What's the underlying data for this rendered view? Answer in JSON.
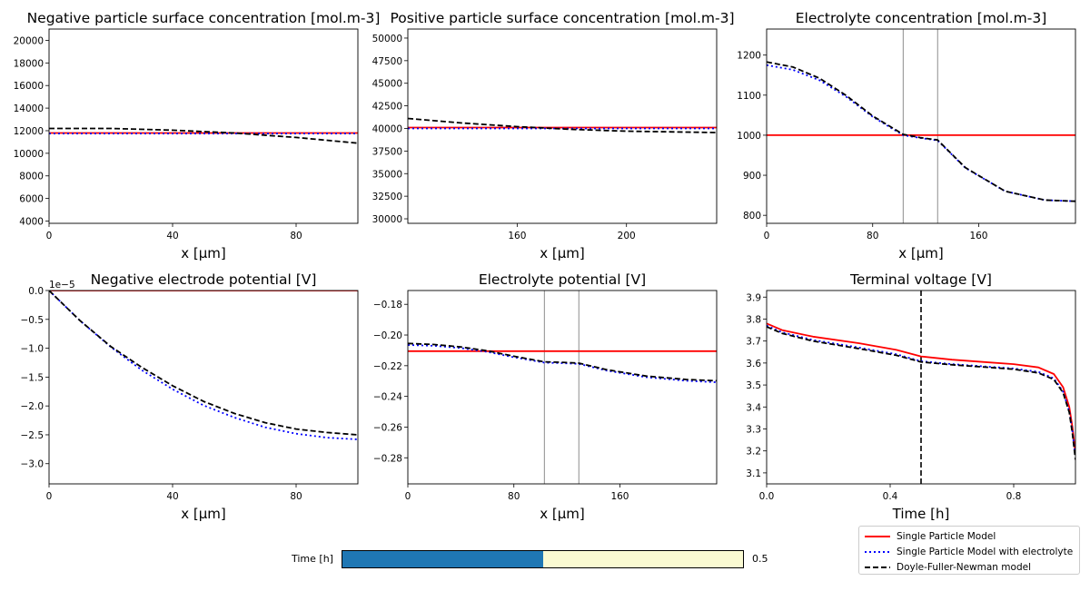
{
  "figure": {
    "legend": [
      {
        "label": "Single Particle Model",
        "color": "#ff0000",
        "style": "solid"
      },
      {
        "label": "Single Particle Model with electrolyte",
        "color": "#0000ff",
        "style": "dotted"
      },
      {
        "label": "Doyle-Fuller-Newman model",
        "color": "#000000",
        "style": "dashed"
      }
    ],
    "slider": {
      "label": "Time [h]",
      "value": 0.5,
      "value_text": "0.5",
      "min": 0,
      "max": 1,
      "fill_color": "#1f77b4",
      "track_color": "#fafad2"
    }
  },
  "chart_data": [
    {
      "type": "line",
      "title": "Negative particle surface concentration [mol.m-3]",
      "xlabel": "x [μm]",
      "ylabel": "",
      "xlim": [
        0,
        100
      ],
      "ylim": [
        3800,
        21000
      ],
      "xticks": [
        "0",
        "40",
        "80"
      ],
      "xtick_values": [
        0,
        40,
        80
      ],
      "yticks": [
        "4000",
        "6000",
        "8000",
        "10000",
        "12000",
        "14000",
        "16000",
        "18000",
        "20000"
      ],
      "ytick_values": [
        4000,
        6000,
        8000,
        10000,
        12000,
        14000,
        16000,
        18000,
        20000
      ],
      "series": [
        {
          "color": "#ff0000",
          "style": "solid",
          "x": [
            0,
            100
          ],
          "y": [
            11800,
            11800
          ]
        },
        {
          "color": "#0000ff",
          "style": "dotted",
          "x": [
            0,
            100
          ],
          "y": [
            11750,
            11750
          ]
        },
        {
          "color": "#000000",
          "style": "dashed",
          "x": [
            0,
            20,
            40,
            60,
            80,
            100
          ],
          "y": [
            12200,
            12200,
            12050,
            11800,
            11400,
            10900
          ]
        }
      ]
    },
    {
      "type": "line",
      "title": "Positive particle surface concentration [mol.m-3]",
      "xlabel": "x [μm]",
      "ylabel": "",
      "xlim": [
        120,
        233
      ],
      "ylim": [
        29500,
        51000
      ],
      "xticks": [
        "160",
        "200"
      ],
      "xtick_values": [
        160,
        200
      ],
      "yticks": [
        "30000",
        "32500",
        "35000",
        "37500",
        "40000",
        "42500",
        "45000",
        "47500",
        "50000"
      ],
      "ytick_values": [
        30000,
        32500,
        35000,
        37500,
        40000,
        42500,
        45000,
        47500,
        50000
      ],
      "series": [
        {
          "color": "#ff0000",
          "style": "solid",
          "x": [
            120,
            233
          ],
          "y": [
            40100,
            40100
          ]
        },
        {
          "color": "#0000ff",
          "style": "dotted",
          "x": [
            120,
            233
          ],
          "y": [
            40000,
            40000
          ]
        },
        {
          "color": "#000000",
          "style": "dashed",
          "x": [
            120,
            140,
            160,
            180,
            200,
            233
          ],
          "y": [
            41100,
            40600,
            40200,
            39900,
            39700,
            39550
          ]
        }
      ]
    },
    {
      "type": "line",
      "title": "Electrolyte concentration [mol.m-3]",
      "xlabel": "x [μm]",
      "ylabel": "",
      "xlim": [
        0,
        233
      ],
      "ylim": [
        780,
        1265
      ],
      "xticks": [
        "0",
        "80",
        "160"
      ],
      "xtick_values": [
        0,
        80,
        160
      ],
      "yticks": [
        "800",
        "900",
        "1000",
        "1100",
        "1200"
      ],
      "ytick_values": [
        800,
        900,
        1000,
        1100,
        1200
      ],
      "vlines": [
        {
          "x": 103,
          "color": "#808080",
          "style": "solid"
        },
        {
          "x": 129,
          "color": "#808080",
          "style": "solid"
        }
      ],
      "series": [
        {
          "color": "#ff0000",
          "style": "solid",
          "x": [
            0,
            233
          ],
          "y": [
            1000,
            1000
          ]
        },
        {
          "color": "#0000ff",
          "style": "dotted",
          "x": [
            0,
            20,
            40,
            60,
            80,
            103,
            116,
            129,
            150,
            180,
            210,
            233
          ],
          "y": [
            1175,
            1163,
            1137,
            1096,
            1046,
            1000,
            993,
            987,
            918,
            860,
            838,
            835
          ]
        },
        {
          "color": "#000000",
          "style": "dashed",
          "x": [
            0,
            20,
            40,
            60,
            80,
            103,
            116,
            129,
            150,
            180,
            210,
            233
          ],
          "y": [
            1183,
            1170,
            1142,
            1099,
            1048,
            1002,
            994,
            988,
            919,
            860,
            838,
            835
          ]
        }
      ]
    },
    {
      "type": "line",
      "title": "Negative electrode potential [V]",
      "xlabel": "x [μm]",
      "ylabel": "",
      "scale_label": "1e−5",
      "xlim": [
        0,
        100
      ],
      "ylim": [
        -3.35,
        0
      ],
      "xticks": [
        "0",
        "40",
        "80"
      ],
      "xtick_values": [
        0,
        40,
        80
      ],
      "yticks": [
        "0.0",
        "−0.5",
        "−1.0",
        "−1.5",
        "−2.0",
        "−2.5",
        "−3.0"
      ],
      "ytick_values": [
        0,
        -0.5,
        -1.0,
        -1.5,
        -2.0,
        -2.5,
        -3.0
      ],
      "series": [
        {
          "color": "#ff0000",
          "style": "solid",
          "x": [
            0,
            100
          ],
          "y": [
            0,
            0
          ]
        },
        {
          "color": "#0000ff",
          "style": "dotted",
          "x": [
            0,
            10,
            20,
            30,
            40,
            50,
            60,
            70,
            80,
            90,
            100
          ],
          "y": [
            0,
            -0.52,
            -0.98,
            -1.38,
            -1.71,
            -1.99,
            -2.2,
            -2.37,
            -2.48,
            -2.55,
            -2.58
          ]
        },
        {
          "color": "#000000",
          "style": "dashed",
          "x": [
            0,
            10,
            20,
            30,
            40,
            50,
            60,
            70,
            80,
            90,
            100
          ],
          "y": [
            0,
            -0.52,
            -0.97,
            -1.33,
            -1.65,
            -1.92,
            -2.13,
            -2.29,
            -2.4,
            -2.46,
            -2.5
          ]
        }
      ]
    },
    {
      "type": "line",
      "title": "Electrolyte potential [V]",
      "xlabel": "x [μm]",
      "ylabel": "",
      "xlim": [
        0,
        233
      ],
      "ylim": [
        -0.297,
        -0.171
      ],
      "xticks": [
        "0",
        "80",
        "160"
      ],
      "xtick_values": [
        0,
        80,
        160
      ],
      "yticks": [
        "−0.18",
        "−0.20",
        "−0.22",
        "−0.24",
        "−0.26",
        "−0.28"
      ],
      "ytick_values": [
        -0.18,
        -0.2,
        -0.22,
        -0.24,
        -0.26,
        -0.28
      ],
      "vlines": [
        {
          "x": 103,
          "color": "#808080",
          "style": "solid"
        },
        {
          "x": 129,
          "color": "#808080",
          "style": "solid"
        }
      ],
      "series": [
        {
          "color": "#ff0000",
          "style": "solid",
          "x": [
            0,
            233
          ],
          "y": [
            -0.2105,
            -0.2105
          ]
        },
        {
          "color": "#0000ff",
          "style": "dotted",
          "x": [
            0,
            20,
            40,
            60,
            80,
            103,
            116,
            129,
            150,
            180,
            210,
            233
          ],
          "y": [
            -0.2065,
            -0.207,
            -0.2085,
            -0.211,
            -0.2145,
            -0.218,
            -0.2183,
            -0.2188,
            -0.2232,
            -0.2275,
            -0.2298,
            -0.2308
          ]
        },
        {
          "color": "#000000",
          "style": "dashed",
          "x": [
            0,
            20,
            40,
            60,
            80,
            103,
            116,
            129,
            150,
            180,
            210,
            233
          ],
          "y": [
            -0.2055,
            -0.2062,
            -0.2078,
            -0.2103,
            -0.2138,
            -0.2175,
            -0.2178,
            -0.2183,
            -0.2226,
            -0.2268,
            -0.229,
            -0.2298
          ]
        }
      ]
    },
    {
      "type": "line",
      "title": "Terminal voltage [V]",
      "xlabel": "Time [h]",
      "ylabel": "",
      "xlim": [
        0,
        1
      ],
      "ylim": [
        3.05,
        3.93
      ],
      "xticks": [
        "0.0",
        "0.4",
        "0.8"
      ],
      "xtick_values": [
        0,
        0.4,
        0.8
      ],
      "yticks": [
        "3.1",
        "3.2",
        "3.3",
        "3.4",
        "3.5",
        "3.6",
        "3.7",
        "3.8",
        "3.9"
      ],
      "ytick_values": [
        3.1,
        3.2,
        3.3,
        3.4,
        3.5,
        3.6,
        3.7,
        3.8,
        3.9
      ],
      "vlines": [
        {
          "x": 0.5,
          "color": "#000000",
          "style": "dashed"
        }
      ],
      "series": [
        {
          "color": "#ff0000",
          "style": "solid",
          "x": [
            0,
            0.05,
            0.15,
            0.3,
            0.42,
            0.5,
            0.6,
            0.7,
            0.8,
            0.88,
            0.93,
            0.96,
            0.98,
            0.99,
            1.0
          ],
          "y": [
            3.78,
            3.75,
            3.72,
            3.69,
            3.66,
            3.63,
            3.615,
            3.605,
            3.595,
            3.58,
            3.55,
            3.49,
            3.4,
            3.31,
            3.19
          ]
        },
        {
          "color": "#0000ff",
          "style": "dotted",
          "x": [
            0,
            0.05,
            0.15,
            0.3,
            0.42,
            0.5,
            0.6,
            0.7,
            0.8,
            0.88,
            0.93,
            0.96,
            0.98,
            0.99,
            1.0
          ],
          "y": [
            3.77,
            3.74,
            3.705,
            3.67,
            3.64,
            3.608,
            3.595,
            3.585,
            3.575,
            3.56,
            3.53,
            3.47,
            3.38,
            3.29,
            3.17
          ]
        },
        {
          "color": "#000000",
          "style": "dashed",
          "x": [
            0,
            0.05,
            0.15,
            0.3,
            0.42,
            0.5,
            0.6,
            0.7,
            0.8,
            0.88,
            0.93,
            0.96,
            0.98,
            0.99,
            1.0
          ],
          "y": [
            3.765,
            3.735,
            3.7,
            3.665,
            3.635,
            3.605,
            3.592,
            3.582,
            3.572,
            3.555,
            3.525,
            3.465,
            3.375,
            3.28,
            3.16
          ]
        }
      ]
    }
  ]
}
